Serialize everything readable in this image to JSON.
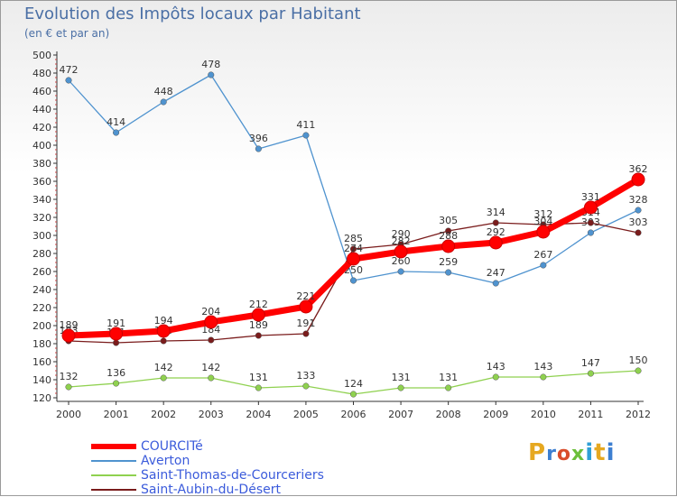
{
  "chart_data": {
    "type": "line",
    "title": "Evolution des Impôts locaux par Habitant",
    "subtitle": "(en € et par an)",
    "x": [
      "2000",
      "2001",
      "2002",
      "2003",
      "2004",
      "2005",
      "2006",
      "2007",
      "2008",
      "2009",
      "2010",
      "2011",
      "2012"
    ],
    "ylim": [
      120,
      500
    ],
    "yticks": [
      120,
      140,
      160,
      180,
      200,
      220,
      240,
      260,
      280,
      300,
      320,
      340,
      360,
      380,
      400,
      420,
      440,
      460,
      480,
      500
    ],
    "grid": false,
    "legend_position": "bottom-left",
    "series": [
      {
        "name": "COURCITé",
        "color": "#ff0000",
        "values": [
          189,
          191,
          194,
          204,
          212,
          221,
          274,
          282,
          288,
          292,
          304,
          331,
          362
        ]
      },
      {
        "name": "Averton",
        "color": "#4f93cf",
        "values": [
          472,
          414,
          448,
          478,
          396,
          411,
          250,
          260,
          259,
          247,
          267,
          303,
          328
        ]
      },
      {
        "name": "Saint-Thomas-de-Courceriers",
        "color": "#8fd14f",
        "values": [
          132,
          136,
          142,
          142,
          131,
          133,
          124,
          131,
          131,
          143,
          143,
          147,
          150
        ]
      },
      {
        "name": "Saint-Aubin-du-Désert",
        "color": "#7a1c1c",
        "values": [
          183,
          181,
          183,
          184,
          189,
          191,
          285,
          290,
          305,
          314,
          312,
          314,
          303
        ]
      }
    ]
  },
  "logo": {
    "text": "Proxiti"
  }
}
